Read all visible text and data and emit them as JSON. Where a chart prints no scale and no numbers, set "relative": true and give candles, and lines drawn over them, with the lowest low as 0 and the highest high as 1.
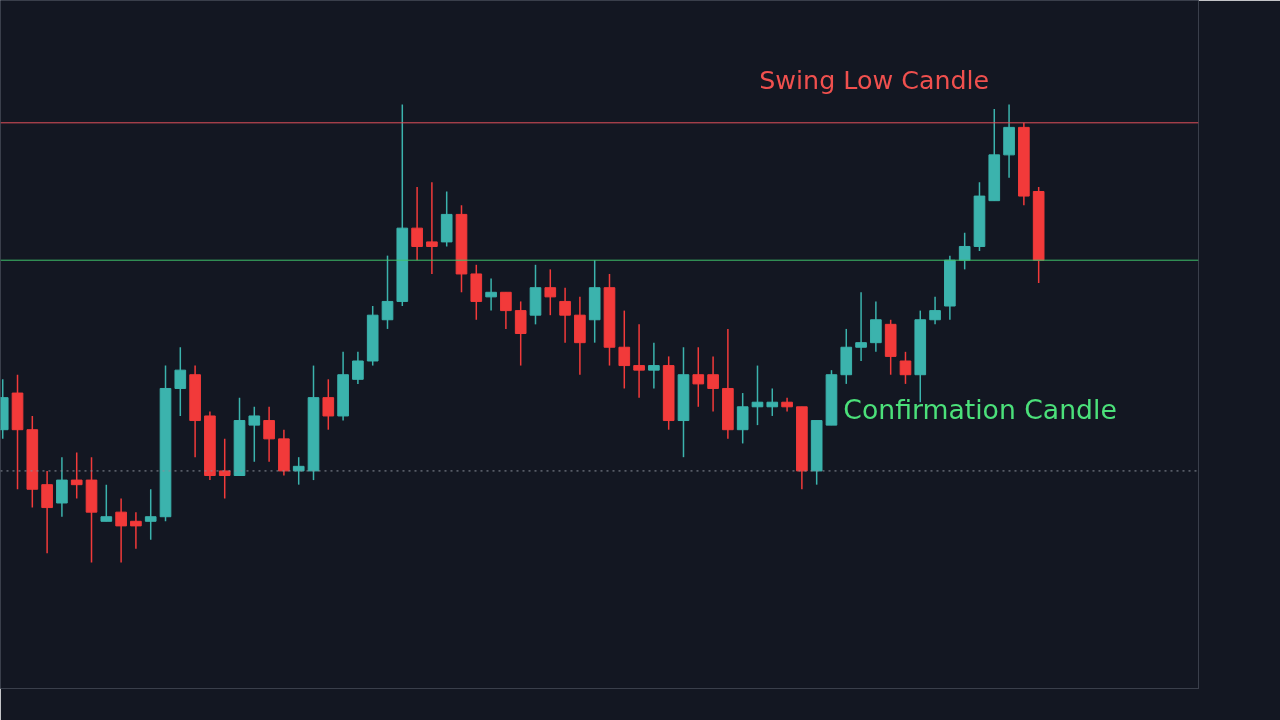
{
  "chart_data": {
    "type": "candlestick",
    "relative": true,
    "categories": [
      null,
      null,
      null,
      null,
      null,
      null,
      null,
      null,
      null,
      null,
      null,
      null,
      null,
      null,
      null,
      null,
      null,
      null,
      null,
      null,
      null,
      null,
      null,
      null,
      null,
      null,
      null,
      null,
      null,
      null,
      null,
      null,
      null,
      null,
      null,
      null,
      null,
      null,
      null,
      null,
      null,
      null,
      null,
      null,
      null,
      null,
      null,
      null,
      null,
      null,
      null,
      null,
      null,
      null,
      null,
      null,
      null,
      null,
      null,
      null,
      null,
      null,
      null,
      null,
      null,
      null,
      null,
      null,
      null,
      null,
      null
    ],
    "ohlc": [
      [
        0.29,
        0.4,
        0.27,
        0.36
      ],
      [
        0.37,
        0.41,
        0.16,
        0.29
      ],
      [
        0.29,
        0.32,
        0.12,
        0.16
      ],
      [
        0.17,
        0.2,
        0.02,
        0.12
      ],
      [
        0.13,
        0.23,
        0.1,
        0.18
      ],
      [
        0.18,
        0.24,
        0.14,
        0.17
      ],
      [
        0.18,
        0.23,
        0.0,
        0.11
      ],
      [
        0.09,
        0.17,
        0.09,
        0.1
      ],
      [
        0.11,
        0.14,
        0.0,
        0.08
      ],
      [
        0.09,
        0.11,
        0.03,
        0.08
      ],
      [
        0.09,
        0.16,
        0.05,
        0.1
      ],
      [
        0.1,
        0.43,
        0.09,
        0.38
      ],
      [
        0.38,
        0.47,
        0.32,
        0.42
      ],
      [
        0.41,
        0.43,
        0.23,
        0.31
      ],
      [
        0.32,
        0.33,
        0.18,
        0.19
      ],
      [
        0.2,
        0.27,
        0.14,
        0.19
      ],
      [
        0.19,
        0.36,
        0.19,
        0.31
      ],
      [
        0.3,
        0.34,
        0.22,
        0.32
      ],
      [
        0.31,
        0.34,
        0.22,
        0.27
      ],
      [
        0.27,
        0.29,
        0.19,
        0.2
      ],
      [
        0.2,
        0.23,
        0.17,
        0.21
      ],
      [
        0.2,
        0.43,
        0.18,
        0.36
      ],
      [
        0.36,
        0.4,
        0.29,
        0.32
      ],
      [
        0.32,
        0.46,
        0.31,
        0.41
      ],
      [
        0.4,
        0.46,
        0.39,
        0.44
      ],
      [
        0.44,
        0.56,
        0.43,
        0.54
      ],
      [
        0.53,
        0.67,
        0.51,
        0.57
      ],
      [
        0.57,
        1.0,
        0.56,
        0.73
      ],
      [
        0.73,
        0.82,
        0.66,
        0.69
      ],
      [
        0.7,
        0.83,
        0.63,
        0.69
      ],
      [
        0.7,
        0.81,
        0.69,
        0.76
      ],
      [
        0.76,
        0.78,
        0.59,
        0.63
      ],
      [
        0.63,
        0.65,
        0.53,
        0.57
      ],
      [
        0.58,
        0.62,
        0.55,
        0.59
      ],
      [
        0.59,
        0.59,
        0.51,
        0.55
      ],
      [
        0.55,
        0.57,
        0.43,
        0.5
      ],
      [
        0.54,
        0.65,
        0.52,
        0.6
      ],
      [
        0.6,
        0.64,
        0.54,
        0.58
      ],
      [
        0.57,
        0.6,
        0.48,
        0.54
      ],
      [
        0.54,
        0.58,
        0.41,
        0.48
      ],
      [
        0.53,
        0.66,
        0.48,
        0.6
      ],
      [
        0.6,
        0.63,
        0.43,
        0.47
      ],
      [
        0.47,
        0.55,
        0.38,
        0.43
      ],
      [
        0.43,
        0.52,
        0.36,
        0.42
      ],
      [
        0.42,
        0.48,
        0.38,
        0.43
      ],
      [
        0.43,
        0.45,
        0.29,
        0.31
      ],
      [
        0.31,
        0.47,
        0.23,
        0.41
      ],
      [
        0.41,
        0.47,
        0.34,
        0.39
      ],
      [
        0.41,
        0.45,
        0.33,
        0.38
      ],
      [
        0.38,
        0.51,
        0.27,
        0.29
      ],
      [
        0.29,
        0.37,
        0.26,
        0.34
      ],
      [
        0.34,
        0.43,
        0.3,
        0.35
      ],
      [
        0.34,
        0.38,
        0.32,
        0.35
      ],
      [
        0.35,
        0.36,
        0.33,
        0.34
      ],
      [
        0.34,
        0.34,
        0.16,
        0.2
      ],
      [
        0.2,
        0.31,
        0.17,
        0.31
      ],
      [
        0.3,
        0.42,
        0.3,
        0.41
      ],
      [
        0.41,
        0.51,
        0.39,
        0.47
      ],
      [
        0.47,
        0.59,
        0.44,
        0.48
      ],
      [
        0.48,
        0.57,
        0.46,
        0.53
      ],
      [
        0.52,
        0.53,
        0.41,
        0.45
      ],
      [
        0.44,
        0.46,
        0.39,
        0.41
      ],
      [
        0.41,
        0.55,
        0.35,
        0.53
      ],
      [
        0.53,
        0.58,
        0.52,
        0.55
      ],
      [
        0.56,
        0.67,
        0.53,
        0.66
      ],
      [
        0.66,
        0.72,
        0.64,
        0.69
      ],
      [
        0.69,
        0.83,
        0.68,
        0.8
      ],
      [
        0.79,
        0.99,
        0.79,
        0.89
      ],
      [
        0.89,
        1.0,
        0.84,
        0.95
      ],
      [
        0.95,
        0.96,
        0.78,
        0.8
      ],
      [
        0.81,
        0.82,
        0.61,
        0.66
      ]
    ],
    "ref_lines": [
      {
        "axis": "y",
        "value": 0.96,
        "color": "#e0505a",
        "line_style": "solid"
      },
      {
        "axis": "y",
        "value": 0.66,
        "color": "#3fbf6a",
        "line_style": "solid"
      },
      {
        "axis": "y",
        "value": 0.2,
        "color": "#8a8f99",
        "line_style": "dotted"
      }
    ],
    "annotations": [
      "Swing Low Candle",
      "Confirmation Candle"
    ]
  }
}
